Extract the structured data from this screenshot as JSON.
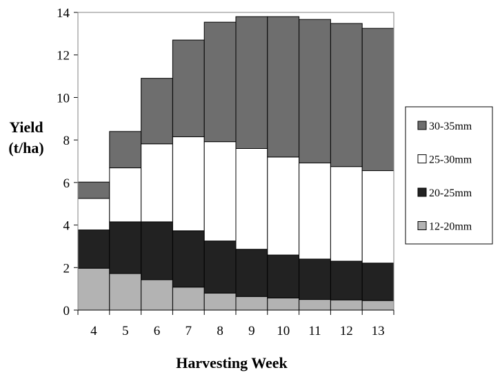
{
  "chart_data": {
    "type": "bar",
    "stacked": true,
    "title": "",
    "xlabel": "Harvesting Week",
    "ylabel_line1": "Yield",
    "ylabel_line2": "(t/ha)",
    "ylim": [
      0,
      14
    ],
    "yticks": [
      0,
      2,
      4,
      6,
      8,
      10,
      12,
      14
    ],
    "categories": [
      "4",
      "5",
      "6",
      "7",
      "8",
      "9",
      "10",
      "11",
      "12",
      "13"
    ],
    "legend_position": "right",
    "series": [
      {
        "name": "12-20mm",
        "color": "#b3b3b3",
        "values": [
          1.97,
          1.72,
          1.43,
          1.08,
          0.8,
          0.64,
          0.57,
          0.5,
          0.48,
          0.45
        ]
      },
      {
        "name": "20-25mm",
        "color": "#222222",
        "values": [
          1.8,
          2.43,
          2.72,
          2.65,
          2.45,
          2.22,
          2.02,
          1.9,
          1.82,
          1.76
        ]
      },
      {
        "name": "25-30mm",
        "color": "#ffffff",
        "values": [
          1.48,
          2.54,
          3.67,
          4.42,
          4.67,
          4.74,
          4.61,
          4.52,
          4.45,
          4.35
        ]
      },
      {
        "name": "30-35mm",
        "color": "#6e6e6e",
        "values": [
          0.77,
          1.71,
          3.08,
          4.55,
          5.62,
          6.2,
          6.6,
          6.75,
          6.73,
          6.69
        ]
      }
    ]
  }
}
